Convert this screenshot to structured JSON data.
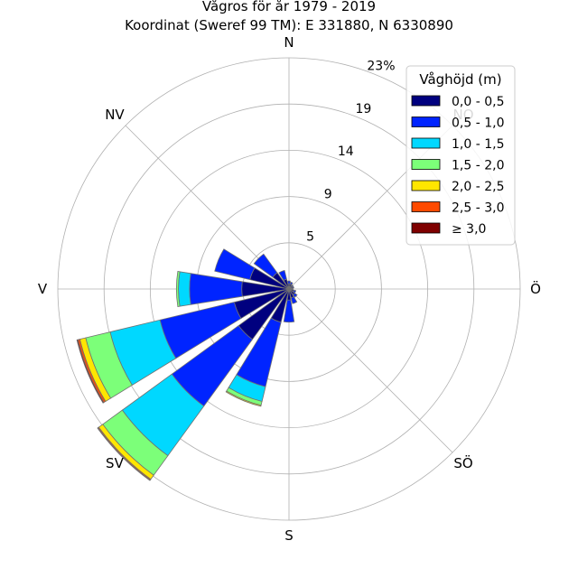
{
  "chart_data": {
    "type": "windrose",
    "title": "Vågros för år 1979 - 2019",
    "subtitle": "Koordinat (Sweref 99 TM): E 331880, N 6330890",
    "directions": [
      "N",
      "NNO",
      "NO",
      "ONO",
      "Ö",
      "OSO",
      "SÖ",
      "SSO",
      "S",
      "SSV",
      "SV",
      "VSV",
      "V",
      "VNV",
      "NV",
      "NNV"
    ],
    "direction_labels": [
      {
        "label": "N",
        "angle": 0
      },
      {
        "label": "NO",
        "angle": 45
      },
      {
        "label": "Ö",
        "angle": 90
      },
      {
        "label": "SÖ",
        "angle": 135
      },
      {
        "label": "S",
        "angle": 180
      },
      {
        "label": "SV",
        "angle": 225
      },
      {
        "label": "V",
        "angle": 270
      },
      {
        "label": "NV",
        "angle": 315
      }
    ],
    "radial_ticks": [
      "5",
      "9",
      "14",
      "19",
      "23%"
    ],
    "radial_tick_values": [
      4.6,
      9.2,
      13.8,
      18.4,
      23
    ],
    "rmax": 23,
    "legend_title": "Våghöjd (m)",
    "legend_placement": "top-right",
    "grid": true,
    "series": [
      {
        "name": "0,0 - 0,5",
        "color": "#00007f",
        "values": [
          0.5,
          0.5,
          0.4,
          0.4,
          0.3,
          0.5,
          0.7,
          0.9,
          1.1,
          3.4,
          6.2,
          5.6,
          4.7,
          4.0,
          2.0,
          1.0
        ]
      },
      {
        "name": "0,5 - 1,0",
        "color": "#0024ff",
        "values": [
          0.3,
          0.2,
          0.1,
          0.1,
          0.1,
          0.2,
          0.3,
          0.6,
          2.2,
          6.6,
          8.2,
          7.6,
          5.2,
          3.6,
          2.3,
          0.9
        ]
      },
      {
        "name": "1,0 - 1,5",
        "color": "#00d8ff",
        "values": [
          0,
          0,
          0,
          0,
          0,
          0,
          0,
          0,
          0,
          1.5,
          6.1,
          5.1,
          1.1,
          0,
          0,
          0
        ]
      },
      {
        "name": "1,5 - 2,0",
        "color": "#7cff79",
        "values": [
          0,
          0,
          0,
          0,
          0,
          0,
          0,
          0,
          0,
          0.4,
          2.4,
          2.5,
          0.2,
          0,
          0,
          0
        ]
      },
      {
        "name": "2,0 - 2,5",
        "color": "#ffe600",
        "values": [
          0,
          0,
          0,
          0,
          0,
          0,
          0,
          0,
          0,
          0.1,
          0.5,
          0.6,
          0,
          0,
          0,
          0
        ]
      },
      {
        "name": "2,5 - 3,0",
        "color": "#ff4a00",
        "values": [
          0,
          0,
          0,
          0,
          0,
          0,
          0,
          0,
          0,
          0,
          0.1,
          0.2,
          0,
          0,
          0,
          0
        ]
      },
      {
        "name": "≥ 3,0",
        "color": "#7f0000",
        "values": [
          0,
          0,
          0,
          0,
          0,
          0,
          0,
          0,
          0,
          0,
          0.05,
          0.1,
          0,
          0,
          0,
          0
        ]
      }
    ]
  }
}
